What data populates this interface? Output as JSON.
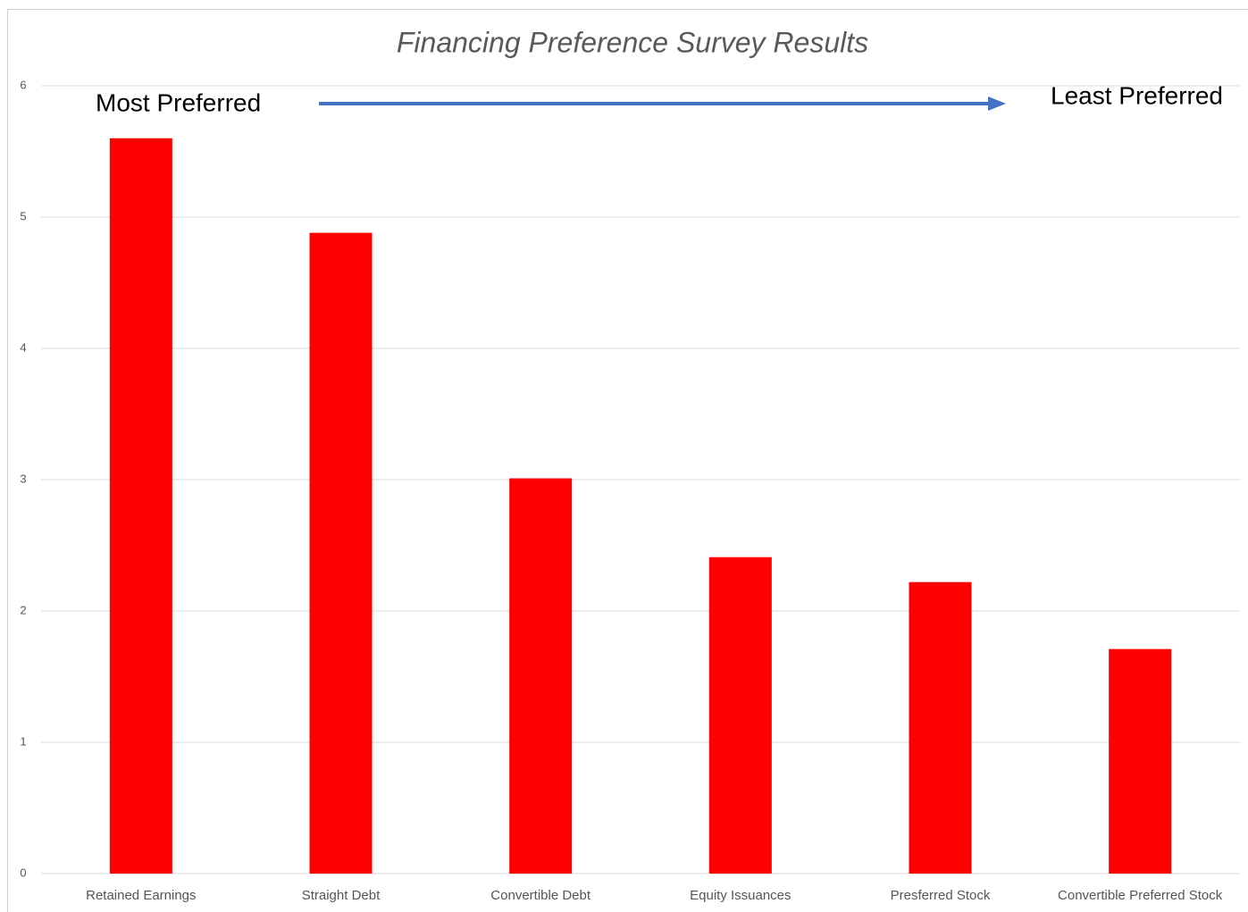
{
  "chart_data": {
    "type": "bar",
    "title": "Financing Preference Survey Results",
    "annotations": [
      "Most Preferred",
      "Least Preferred"
    ],
    "categories": [
      "Retained Earnings",
      "Straight Debt",
      "Convertible Debt",
      "Equity Issuances",
      "Presferred Stock",
      "Convertible Preferred Stock"
    ],
    "values": [
      5.6,
      4.88,
      3.01,
      2.41,
      2.22,
      1.71
    ],
    "color": "#ff0000",
    "ylim": [
      0,
      6
    ],
    "yticks": [
      0,
      1,
      2,
      3,
      4,
      5,
      6
    ],
    "grid": true
  }
}
